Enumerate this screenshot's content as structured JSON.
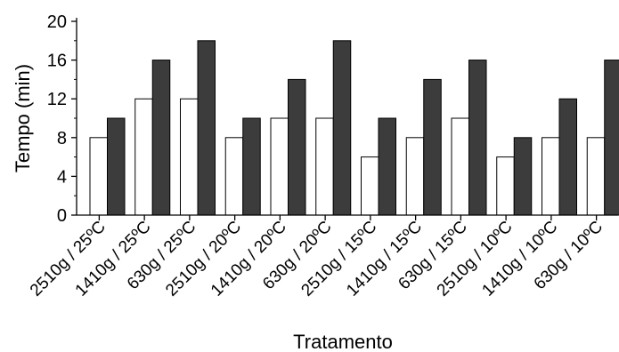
{
  "chart_data": {
    "type": "bar",
    "xlabel": "Tratamento",
    "ylabel": "Tempo (min)",
    "ylim": [
      0,
      20
    ],
    "yticks": [
      0,
      4,
      8,
      12,
      16,
      20
    ],
    "categories": [
      "2510g / 25ºC",
      "1410g / 25ºC",
      "630g / 25ºC",
      "2510g / 20ºC",
      "1410g / 20ºC",
      "630g / 20ºC",
      "2510g / 15ºC",
      "1410g / 15ºC",
      "630g / 15ºC",
      "2510g / 10ºC",
      "1410g / 10ºC",
      "630g / 10ºC"
    ],
    "series": [
      {
        "color": "#ffffff",
        "values": [
          8,
          12,
          12,
          8,
          10,
          10,
          6,
          8,
          10,
          6,
          8,
          8
        ]
      },
      {
        "color": "#3c3c3c",
        "values": [
          10,
          16,
          18,
          10,
          14,
          18,
          10,
          14,
          16,
          8,
          12,
          16
        ]
      }
    ],
    "grid": false,
    "legend": "none"
  }
}
